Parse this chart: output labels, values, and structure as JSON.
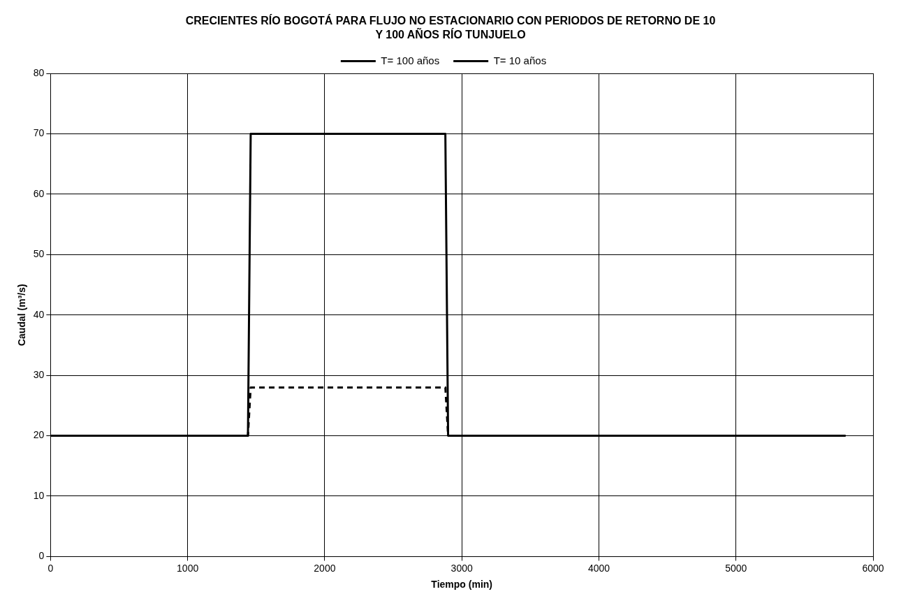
{
  "chart_data": {
    "type": "line",
    "title": "CRECIENTES RÍO BOGOTÁ PARA FLUJO NO ESTACIONARIO CON PERIODOS DE RETORNO DE 10 Y 100 AÑOS RÍO  TUNJUELO",
    "xlabel": "Tiempo (min)",
    "ylabel": "Caudal (m³/s)",
    "series": [
      {
        "name": "T= 100 años",
        "color": "#000000",
        "line_style": "solid",
        "x": [
          0,
          1440,
          1460,
          2880,
          2900,
          5800
        ],
        "values": [
          20,
          20,
          70,
          70,
          20,
          20
        ]
      },
      {
        "name": "T= 10 años",
        "color": "#000000",
        "line_style": "dashed",
        "x": [
          0,
          1440,
          1460,
          2880,
          2900,
          5800
        ],
        "values": [
          20,
          20,
          28,
          28,
          20,
          20
        ]
      }
    ],
    "xlim": [
      0,
      6000
    ],
    "xticks": [
      0,
      1000,
      2000,
      3000,
      4000,
      5000,
      6000
    ],
    "ylim": [
      0,
      80
    ],
    "yticks": [
      0,
      10,
      20,
      30,
      40,
      50,
      60,
      70,
      80
    ],
    "grid": true,
    "legend": "top",
    "marker": "none"
  }
}
